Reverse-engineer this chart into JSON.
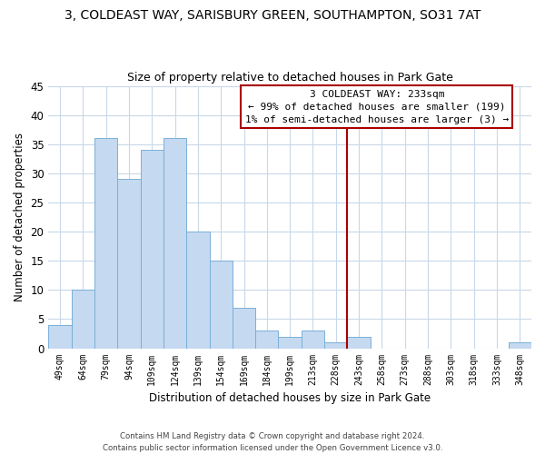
{
  "title1": "3, COLDEAST WAY, SARISBURY GREEN, SOUTHAMPTON, SO31 7AT",
  "title2": "Size of property relative to detached houses in Park Gate",
  "xlabel": "Distribution of detached houses by size in Park Gate",
  "ylabel": "Number of detached properties",
  "bar_labels": [
    "49sqm",
    "64sqm",
    "79sqm",
    "94sqm",
    "109sqm",
    "124sqm",
    "139sqm",
    "154sqm",
    "169sqm",
    "184sqm",
    "199sqm",
    "213sqm",
    "228sqm",
    "243sqm",
    "258sqm",
    "273sqm",
    "288sqm",
    "303sqm",
    "318sqm",
    "333sqm",
    "348sqm"
  ],
  "bar_values": [
    4,
    10,
    36,
    29,
    34,
    36,
    20,
    15,
    7,
    3,
    2,
    3,
    1,
    2,
    0,
    0,
    0,
    0,
    0,
    0,
    1
  ],
  "bar_color": "#c5d9f0",
  "bar_edge_color": "#7ab0d8",
  "vline_color": "#aa0000",
  "ylim": [
    0,
    45
  ],
  "yticks": [
    0,
    5,
    10,
    15,
    20,
    25,
    30,
    35,
    40,
    45
  ],
  "annotation_title": "3 COLDEAST WAY: 233sqm",
  "annotation_line1": "← 99% of detached houses are smaller (199)",
  "annotation_line2": "1% of semi-detached houses are larger (3) →",
  "annotation_box_color": "#ffffff",
  "annotation_box_edge": "#aa0000",
  "footer1": "Contains HM Land Registry data © Crown copyright and database right 2024.",
  "footer2": "Contains public sector information licensed under the Open Government Licence v3.0.",
  "background_color": "#ffffff",
  "grid_color": "#c8d8e8"
}
